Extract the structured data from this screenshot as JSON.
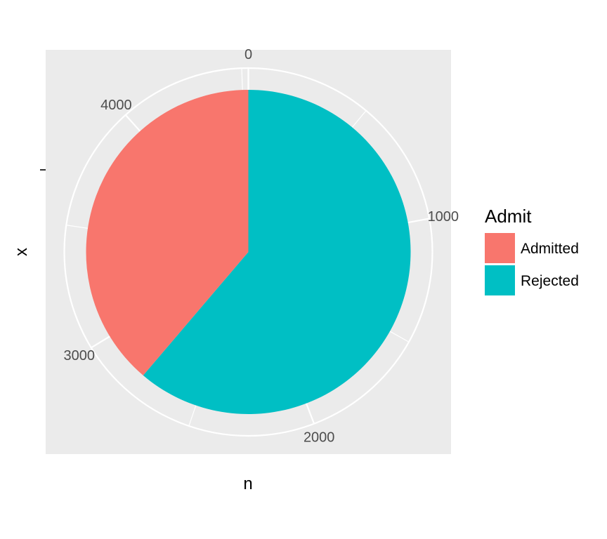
{
  "chart_data": {
    "type": "pie",
    "categories": [
      "Admitted",
      "Rejected"
    ],
    "values": [
      1755,
      2771
    ],
    "colors": [
      "#F8766D",
      "#00BFC4"
    ],
    "theta_axis": {
      "ticks": [
        0,
        1000,
        2000,
        3000,
        4000
      ],
      "labels": [
        "0",
        "1000",
        "2000",
        "3000",
        "4000"
      ],
      "max": 4526
    },
    "xlabel": "n",
    "ylabel": "x",
    "y_tick_label": "",
    "legend": {
      "title": "Admit",
      "position": "right",
      "entries": [
        "Admitted",
        "Rejected"
      ]
    },
    "panel_background": "#EBEBEB",
    "grid": true
  }
}
